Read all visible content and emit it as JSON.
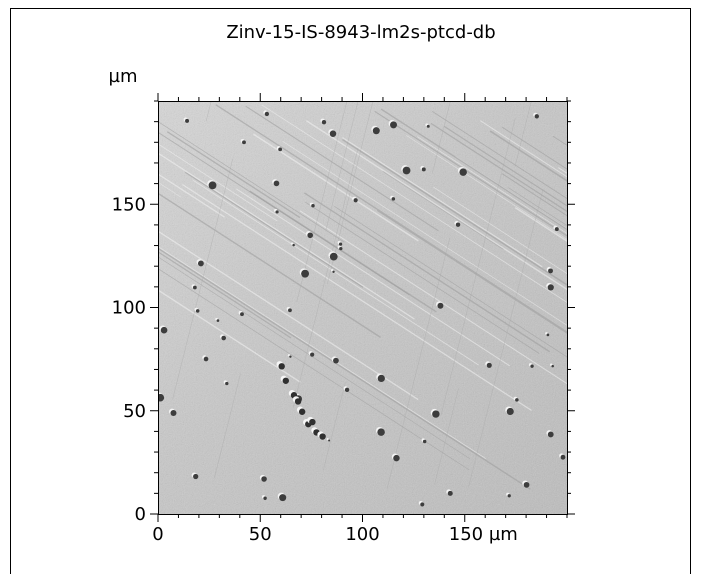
{
  "chart_data": {
    "type": "heatmap",
    "title": "Zinv-15-IS-8943-lm2s-ptcd-db",
    "xlabel": "",
    "ylabel": "",
    "x_unit": "µm",
    "y_unit": "µm",
    "xlim": [
      0,
      200
    ],
    "ylim": [
      0,
      200
    ],
    "x_ticks": [
      0,
      50,
      100,
      150
    ],
    "y_ticks": [
      0,
      50,
      100,
      150
    ],
    "x_tick_labels": [
      "0",
      "50",
      "100",
      "150 µm"
    ],
    "y_tick_labels": [
      "0",
      "50",
      "100",
      "150"
    ],
    "colormap": "grayscale",
    "grid": false,
    "legend": "none",
    "image_description_tags": [
      "surface-topography",
      "scratches",
      "particles"
    ]
  },
  "colors": {
    "background": "#ffffff",
    "frame": "#000000",
    "image_light": "#e6e6e6",
    "image_mid": "#bdbdbd",
    "image_dark": "#5a5a5a"
  }
}
